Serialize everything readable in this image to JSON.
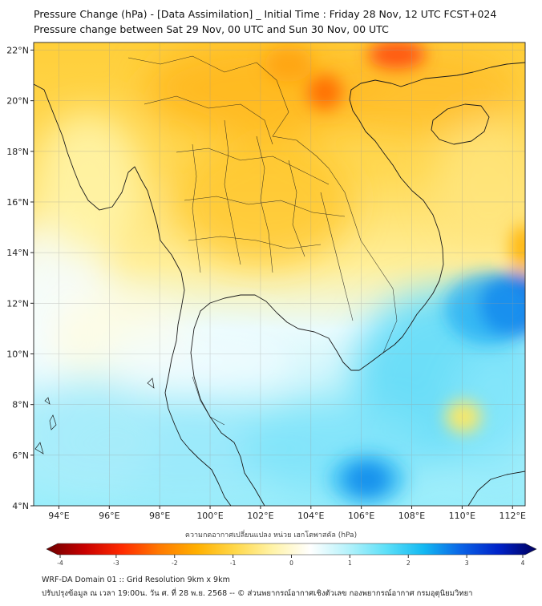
{
  "title": {
    "line1": "Pressure Change (hPa) - [Data Assimilation] _ Initial Time : Friday 28 Nov, 12 UTC FCST+024",
    "line2": "Pressure change between Sat 29 Nov, 00 UTC and Sun 30 Nov, 00 UTC"
  },
  "map": {
    "lon_ticks": [
      "94°E",
      "96°E",
      "98°E",
      "100°E",
      "102°E",
      "104°E",
      "106°E",
      "108°E",
      "110°E",
      "112°E"
    ],
    "lat_ticks": [
      "22°N",
      "20°N",
      "18°N",
      "16°N",
      "14°N",
      "12°N",
      "10°N",
      "8°N",
      "6°N",
      "4°N"
    ],
    "lon_values": [
      94,
      96,
      98,
      100,
      102,
      104,
      106,
      108,
      110,
      112
    ],
    "lat_values": [
      22,
      20,
      18,
      16,
      14,
      12,
      10,
      8,
      6,
      4
    ],
    "lon_range": [
      93,
      112.5
    ],
    "lat_range": [
      4,
      22.3
    ],
    "gridlines": true
  },
  "colorbar": {
    "caption": "ความกดอากาศเปลี่ยนแปลง หน่วย เฮกโตพาสคัล (hPa)",
    "range": [
      -4,
      4
    ],
    "tick_labels": [
      "-4",
      "-3",
      "-2",
      "-1",
      "0",
      "1",
      "2",
      "3",
      "4"
    ],
    "tick_values": [
      -4,
      -3,
      -2,
      -1,
      0,
      1,
      2,
      3,
      4
    ],
    "colors": [
      "#6b0000",
      "#c80000",
      "#ff2a00",
      "#ff7a00",
      "#ffb000",
      "#ffd84a",
      "#fff3a8",
      "#ffffff",
      "#b5f2fb",
      "#5ee0f8",
      "#13b9f2",
      "#0a63e6",
      "#0022c8",
      "#00005e"
    ]
  },
  "footer": {
    "line1": "WRF-DA Domain 01 :: Grid Resolution 9km x 9km",
    "line2": "ปรับปรุงข้อมูล ณ เวลา 19:00น. วัน ศ. ที่ 28 พ.ย. 2568 -- © ส่วนพยากรณ์อากาศเชิงตัวเลข กองพยากรณ์อากาศ กรมอุตุนิยมวิทยา"
  }
}
